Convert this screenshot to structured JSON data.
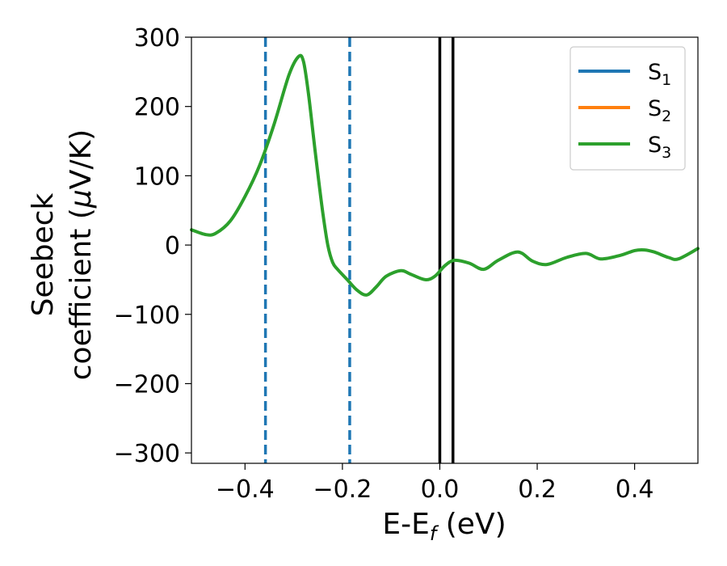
{
  "chart_data": {
    "type": "line",
    "title": "",
    "xlabel": {
      "main": "E-E",
      "sub": "f",
      "unit": " (eV)"
    },
    "ylabel": {
      "line1": "Seebeck",
      "line2_pre": "coefficient  (",
      "line2_mu": "μ",
      "line2_post": "V/K)"
    },
    "xlim": [
      -0.51,
      0.53
    ],
    "ylim": [
      -315,
      300
    ],
    "xticks": [
      {
        "value": -0.4,
        "label": "−0.4"
      },
      {
        "value": -0.2,
        "label": "−0.2"
      },
      {
        "value": 0.0,
        "label": "0.0"
      },
      {
        "value": 0.2,
        "label": "0.2"
      },
      {
        "value": 0.4,
        "label": "0.4"
      }
    ],
    "yticks": [
      {
        "value": 300,
        "label": "300"
      },
      {
        "value": 200,
        "label": "200"
      },
      {
        "value": 100,
        "label": "100"
      },
      {
        "value": 0,
        "label": "0"
      },
      {
        "value": -100,
        "label": "−100"
      },
      {
        "value": -200,
        "label": "−200"
      },
      {
        "value": -300,
        "label": "−300"
      }
    ],
    "grid": false,
    "legend_position": "top-right",
    "series": [
      {
        "name": "S",
        "sub": "1",
        "color": "#1f77b4",
        "x": [],
        "y": []
      },
      {
        "name": "S",
        "sub": "2",
        "color": "#ff7f0e",
        "x": [],
        "y": []
      },
      {
        "name": "S",
        "sub": "3",
        "color": "#2ca02c",
        "x": [
          -0.51,
          -0.48,
          -0.46,
          -0.43,
          -0.4,
          -0.37,
          -0.34,
          -0.31,
          -0.29,
          -0.28,
          -0.27,
          -0.26,
          -0.25,
          -0.24,
          -0.23,
          -0.22,
          -0.21,
          -0.19,
          -0.17,
          -0.15,
          -0.13,
          -0.11,
          -0.08,
          -0.06,
          -0.03,
          -0.01,
          0.01,
          0.03,
          0.06,
          0.09,
          0.12,
          0.16,
          0.19,
          0.22,
          0.26,
          0.3,
          0.33,
          0.37,
          0.4,
          0.42,
          0.44,
          0.47,
          0.49,
          0.53
        ],
        "y": [
          22,
          15,
          17,
          35,
          70,
          115,
          175,
          245,
          272,
          265,
          220,
          160,
          100,
          45,
          0,
          -25,
          -35,
          -50,
          -65,
          -72,
          -60,
          -45,
          -37,
          -42,
          -50,
          -45,
          -30,
          -22,
          -26,
          -35,
          -22,
          -10,
          -23,
          -28,
          -18,
          -12,
          -20,
          -15,
          -8,
          -7,
          -10,
          -18,
          -20,
          -5
        ]
      }
    ],
    "vlines": [
      {
        "x": -0.358,
        "color": "#1f77b4",
        "style": "dashed"
      },
      {
        "x": -0.185,
        "color": "#1f77b4",
        "style": "dashed"
      },
      {
        "x": 0.0,
        "color": "#000000",
        "style": "solid"
      },
      {
        "x": 0.027,
        "color": "#000000",
        "style": "solid"
      }
    ]
  }
}
